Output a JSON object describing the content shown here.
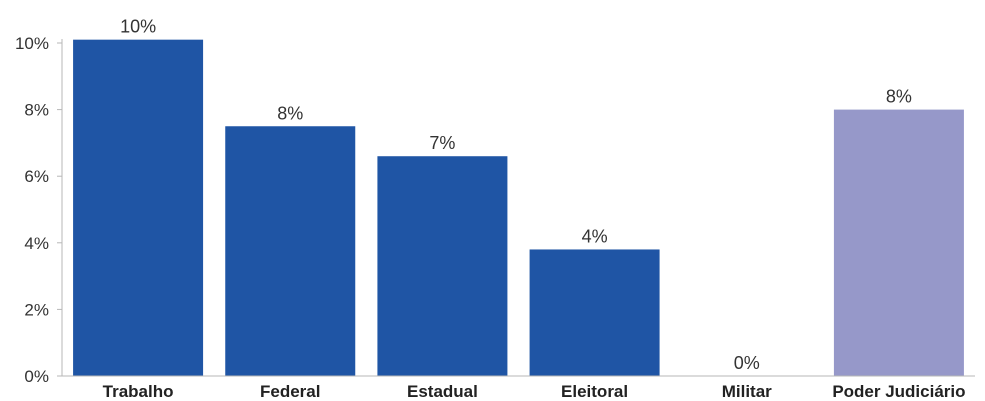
{
  "chart_data": {
    "type": "bar",
    "categories": [
      "Trabalho",
      "Federal",
      "Estadual",
      "Eleitoral",
      "Militar",
      "Poder Judiciário"
    ],
    "values": [
      10.1,
      7.5,
      6.6,
      3.8,
      0.0,
      8.0
    ],
    "data_labels": [
      "10%",
      "8%",
      "7%",
      "4%",
      "0%",
      "8%"
    ],
    "bar_colors": [
      "#1f55a5",
      "#1f55a5",
      "#1f55a5",
      "#1f55a5",
      "#1f55a5",
      "#9698c9"
    ],
    "ylim": [
      0,
      10
    ],
    "yticks": [
      0,
      2,
      4,
      6,
      8,
      10
    ],
    "ytick_labels": [
      "0%",
      "2%",
      "4%",
      "6%",
      "8%",
      "10%"
    ],
    "grid": false,
    "legend": "none"
  }
}
